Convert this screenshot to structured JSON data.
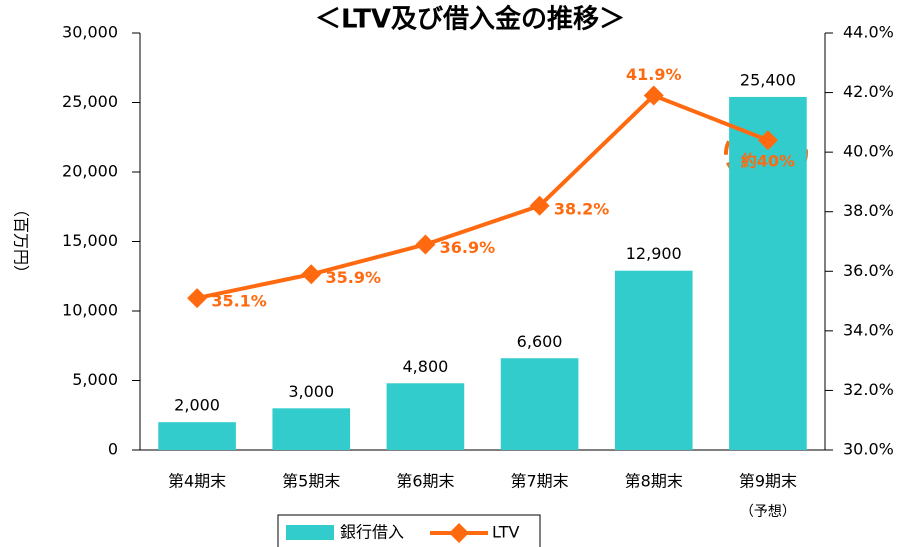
{
  "chart_data": {
    "type": "bar",
    "title": "＜LTV及び借入金の推移＞",
    "y_label": "（百万円）",
    "categories": [
      "第4期末",
      "第5期末",
      "第6期末",
      "第7期末",
      "第8期末",
      "第9期末"
    ],
    "annotations": [
      "（予想）"
    ],
    "series": [
      {
        "name": "銀行借入",
        "type": "bar",
        "color": "#33cccc",
        "values": [
          2000,
          3000,
          4800,
          6600,
          12900,
          25400
        ],
        "value_labels": [
          "2,000",
          "3,000",
          "4,800",
          "6,600",
          "12,900",
          "25,400"
        ]
      },
      {
        "name": "LTV",
        "type": "line",
        "axis": "y2",
        "color": "#ff6a10",
        "values": [
          35.1,
          35.9,
          36.9,
          38.2,
          41.9,
          40.4
        ],
        "value_labels": [
          "35.1%",
          "35.9%",
          "36.9%",
          "38.2%",
          "41.9%",
          "約40%"
        ]
      }
    ],
    "ylim": [
      0,
      30000
    ],
    "yticks": [
      0,
      {
        "value": 5000,
        "label": "5,000"
      },
      {
        "value": 10000,
        "label": "10,000"
      },
      {
        "value": 15000,
        "label": "15,000"
      },
      {
        "value": 20000,
        "label": "20,000"
      },
      {
        "value": 25000,
        "label": "25,000"
      },
      {
        "value": 30000,
        "label": "30,000"
      }
    ],
    "y2lim": [
      30,
      44
    ],
    "y2ticks": [
      {
        "value": 30,
        "label": "30.0%"
      },
      {
        "value": 32,
        "label": "32.0%"
      },
      {
        "value": 34,
        "label": "34.0%"
      },
      {
        "value": 36,
        "label": "36.0%"
      },
      {
        "value": 38,
        "label": "38.0%"
      },
      {
        "value": 40,
        "label": "40.0%"
      },
      {
        "value": 42,
        "label": "42.0%"
      },
      {
        "value": 44,
        "label": "44.0%"
      }
    ],
    "grid": false,
    "legend": "bottom"
  }
}
